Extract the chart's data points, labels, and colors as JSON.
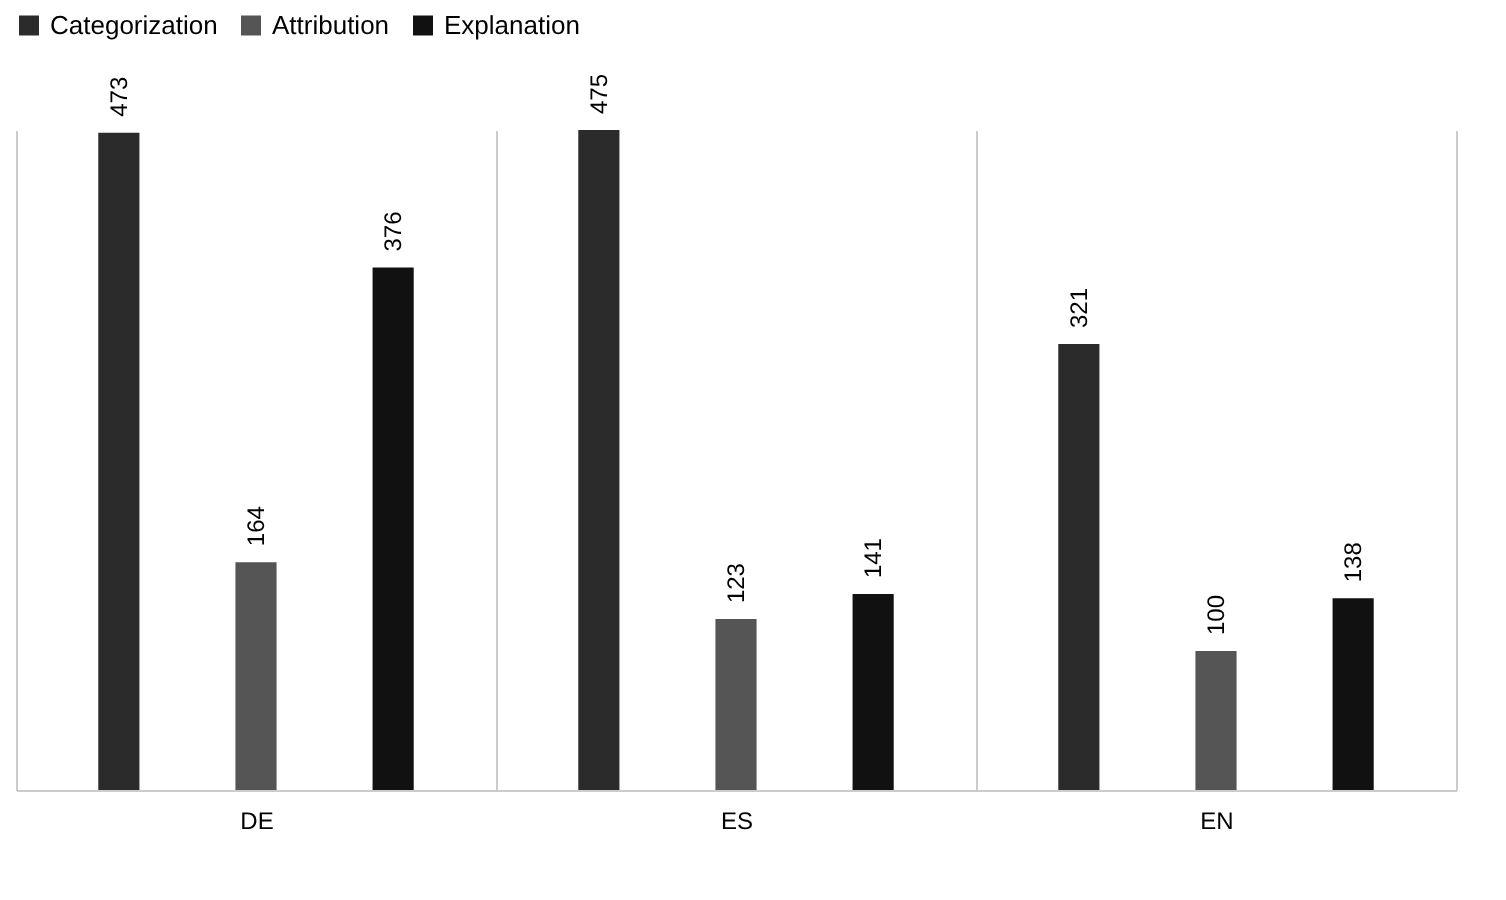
{
  "chart_data": {
    "type": "bar",
    "categories": [
      "DE",
      "ES",
      "EN"
    ],
    "series": [
      {
        "name": "Categorization",
        "color": "#2b2b2b",
        "values": [
          473,
          475,
          321
        ]
      },
      {
        "name": "Attribution",
        "color": "#555555",
        "values": [
          164,
          123,
          100
        ]
      },
      {
        "name": "Explanation",
        "color": "#111111",
        "values": [
          376,
          141,
          138
        ]
      }
    ],
    "data_labels": true,
    "legend": "top",
    "grid": "x",
    "tick_labels": "x"
  }
}
